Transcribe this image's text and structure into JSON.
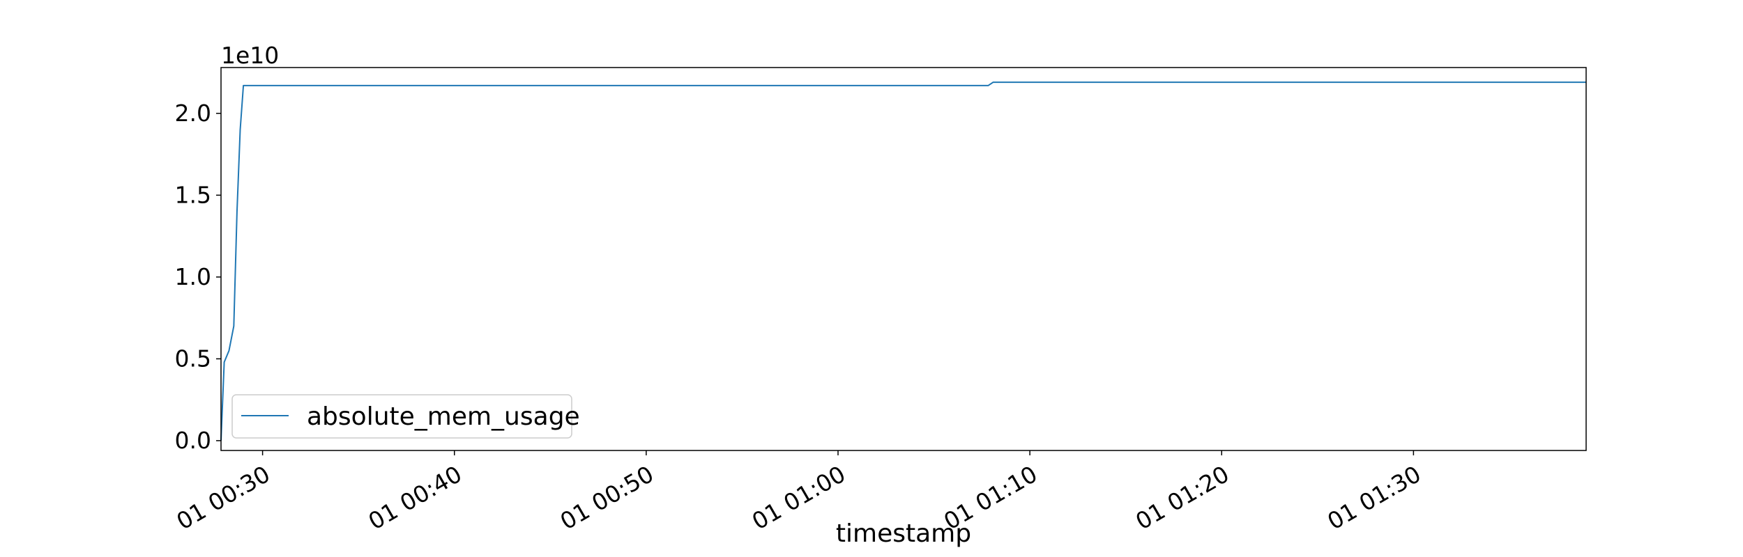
{
  "chart_data": {
    "type": "line",
    "xlabel": "timestamp",
    "ylabel": "",
    "x_unit": "minutes",
    "y_offset_label": "1e10",
    "y_scale_factor": 10000000000,
    "xlim": [
      "00:27:50",
      "01:39:00"
    ],
    "ylim": [
      -0.06,
      2.28
    ],
    "x_ticks": [
      {
        "value": "00:30",
        "label": "01 00:30"
      },
      {
        "value": "00:40",
        "label": "01 00:40"
      },
      {
        "value": "00:50",
        "label": "01 00:50"
      },
      {
        "value": "01:00",
        "label": "01 01:00"
      },
      {
        "value": "01:10",
        "label": "01 01:10"
      },
      {
        "value": "01:20",
        "label": "01 01:20"
      },
      {
        "value": "01:30",
        "label": "01 01:30"
      }
    ],
    "y_ticks": [
      {
        "value": 0.0,
        "label": "0.0"
      },
      {
        "value": 0.5,
        "label": "0.5"
      },
      {
        "value": 1.0,
        "label": "1.0"
      },
      {
        "value": 1.5,
        "label": "1.5"
      },
      {
        "value": 2.0,
        "label": "2.0"
      }
    ],
    "grid": false,
    "legend": {
      "position": "lower-left"
    },
    "series": [
      {
        "name": "absolute_mem_usage",
        "color": "#1f77b4",
        "x": [
          "00:27:50",
          "00:28:00",
          "00:28:15",
          "00:28:30",
          "00:28:40",
          "00:28:50",
          "00:29:00",
          "00:30:00",
          "00:40:00",
          "00:50:00",
          "01:00:00",
          "01:07:50",
          "01:08:05",
          "01:08:20",
          "01:20:00",
          "01:30:00",
          "01:39:00"
        ],
        "y": [
          0.0,
          0.48,
          0.55,
          0.7,
          1.4,
          1.9,
          2.17,
          2.17,
          2.17,
          2.17,
          2.17,
          2.17,
          2.19,
          2.19,
          2.19,
          2.19,
          2.19
        ]
      }
    ]
  }
}
